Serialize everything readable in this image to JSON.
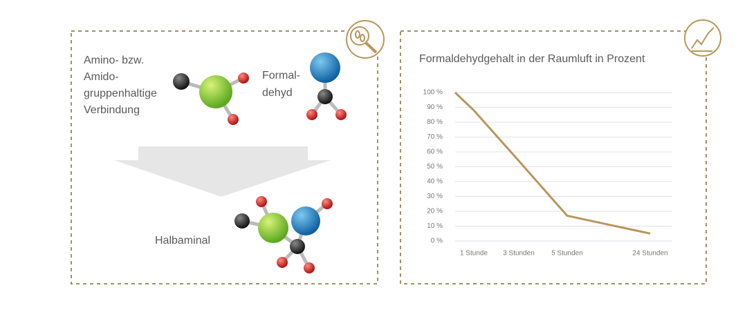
{
  "diagram": {
    "reactant_1": {
      "lines": [
        "Amino- bzw.",
        "Amido-",
        "gruppenhaltige",
        "Verbindung"
      ]
    },
    "reactant_2": {
      "lines": [
        "Formal-",
        "dehyd"
      ]
    },
    "product": {
      "label": "Halbaminal"
    }
  },
  "chart_data": {
    "type": "line",
    "title": "Formaldehydgehalt in der Raumluft in Prozent",
    "categories": [
      null,
      "1 Stunde",
      "3 Stunden",
      "5 Stunden",
      "24 Stunden"
    ],
    "values": [
      100,
      88,
      54,
      17,
      5
    ],
    "color": "#b8965a",
    "ylim": [
      0,
      100
    ],
    "yticks": [
      {
        "value": 0,
        "label": "0 %"
      },
      {
        "value": 10,
        "label": "10 %"
      },
      {
        "value": 20,
        "label": "20 %"
      },
      {
        "value": 30,
        "label": "30 %"
      },
      {
        "value": 40,
        "label": "40 %"
      },
      {
        "value": 50,
        "label": "50 %"
      },
      {
        "value": 60,
        "label": "60 %"
      },
      {
        "value": 70,
        "label": "70 %"
      },
      {
        "value": 80,
        "label": "80 %"
      },
      {
        "value": 90,
        "label": "90 %"
      },
      {
        "value": 100,
        "label": "100 %"
      }
    ],
    "grid": true
  }
}
